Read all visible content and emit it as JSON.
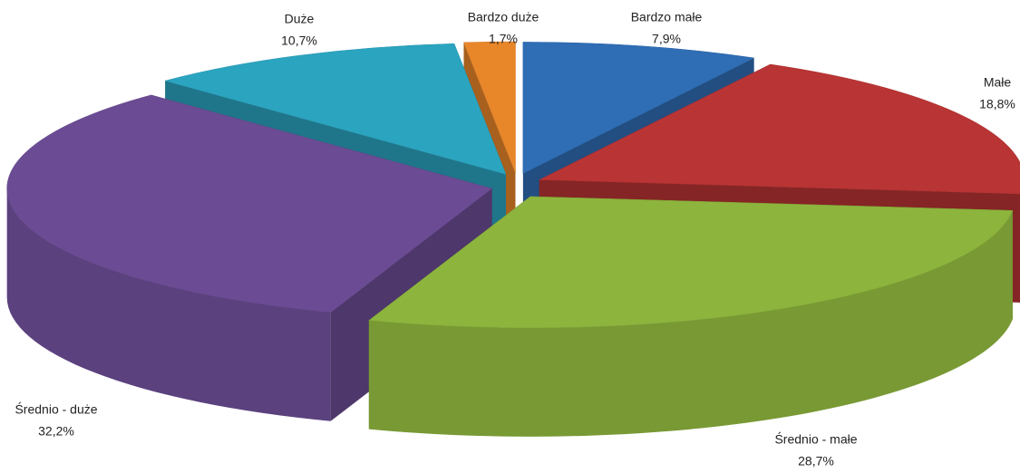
{
  "chart_data": {
    "type": "pie",
    "categories": [
      "Bardzo małe",
      "Małe",
      "Średnio - małe",
      "Średnio - duże",
      "Duże",
      "Bardzo duże"
    ],
    "values": [
      7.9,
      18.8,
      28.7,
      32.2,
      10.7,
      1.7
    ],
    "value_labels": [
      "7,9%",
      "18,8%",
      "28,7%",
      "32,2%",
      "10,7%",
      "1,7%"
    ],
    "colors": [
      "#2f6db5",
      "#b93434",
      "#8db43d",
      "#6b4c94",
      "#2ba4c0",
      "#e8862a"
    ]
  }
}
